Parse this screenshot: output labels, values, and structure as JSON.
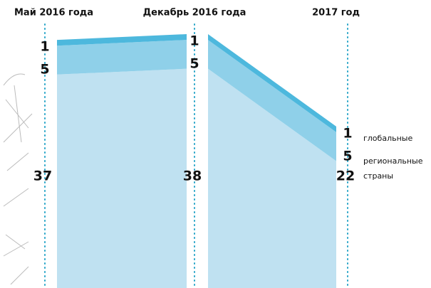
{
  "chart_data": {
    "type": "area",
    "categories": [
      "Май 2016 года",
      "Декабрь 2016 года",
      "2017 год"
    ],
    "series": [
      {
        "name": "страны",
        "color": "#bfe1f1",
        "values": [
          37,
          38,
          22
        ]
      },
      {
        "name": "региональные",
        "color": "#8fd0e9",
        "values": [
          5,
          5,
          5
        ]
      },
      {
        "name": "глобальные",
        "color": "#4db8dd",
        "values": [
          1,
          1,
          1
        ]
      }
    ]
  }
}
